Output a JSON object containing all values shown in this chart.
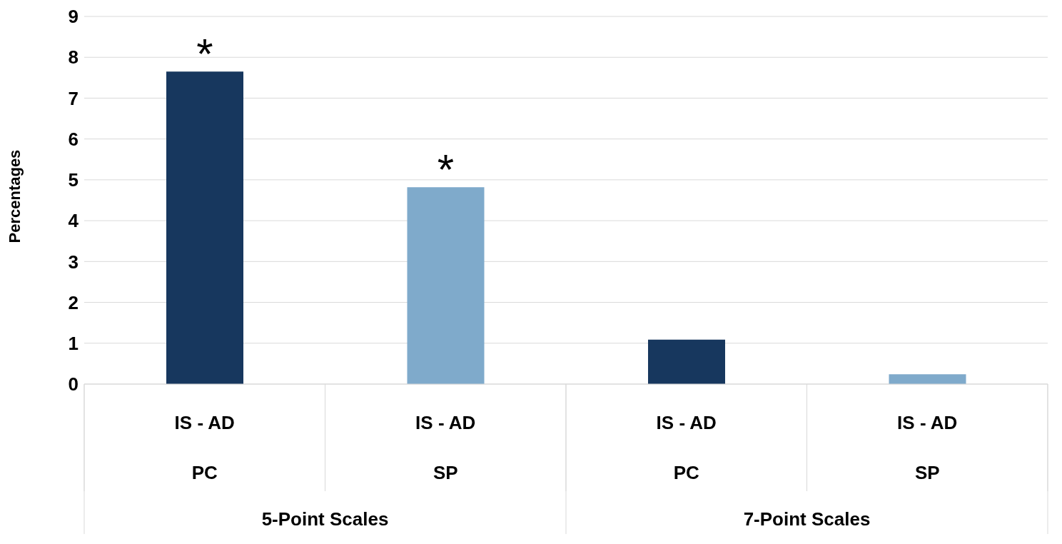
{
  "chart_data": {
    "type": "bar",
    "ylabel": "Percentages",
    "categories": [
      "IS - AD\nPC",
      "IS - AD\nSP",
      "IS - AD\nPC",
      "IS - AD\nSP"
    ],
    "values": [
      7.65,
      4.82,
      1.09,
      0.24
    ],
    "colors": [
      "#17375e",
      "#7faacb",
      "#17375e",
      "#7faacb"
    ],
    "value_labels": [
      "*",
      "*",
      null,
      null
    ],
    "annotations": [
      "5-Point Scales",
      "7-Point Scales"
    ],
    "ylim": [
      0,
      9
    ],
    "yticks": [
      0,
      1,
      2,
      3,
      4,
      5,
      6,
      7,
      8,
      9
    ],
    "grid": "y"
  }
}
